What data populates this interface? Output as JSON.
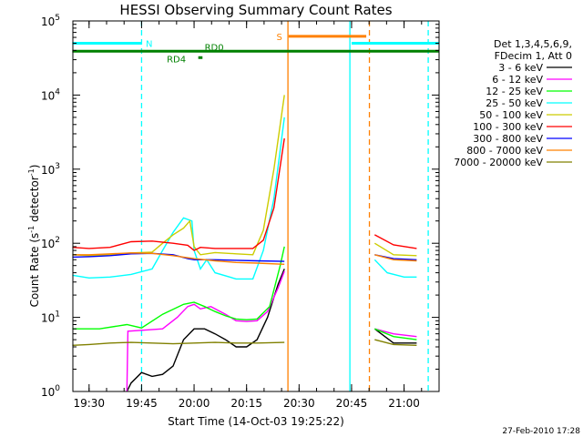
{
  "chart_data": {
    "type": "line",
    "title": "HESSI Observing Summary Count Rates",
    "xlabel": "Start Time (14-Oct-03 19:25:22)",
    "ylabel_main": "Count Rate (s",
    "ylabel_sup1": "-1",
    "ylabel_mid": " detector",
    "ylabel_sup2": "-1",
    "ylabel_end": ")",
    "xlim": [
      19.4228,
      21.1667
    ],
    "ylim": [
      1,
      100000
    ],
    "y_scale": "log",
    "x_ticks": [
      {
        "v": 19.5,
        "label": "19:30"
      },
      {
        "v": 19.75,
        "label": "19:45"
      },
      {
        "v": 20.0,
        "label": "20:00"
      },
      {
        "v": 20.25,
        "label": "20:15"
      },
      {
        "v": 20.5,
        "label": "20:30"
      },
      {
        "v": 20.75,
        "label": "20:45"
      },
      {
        "v": 21.0,
        "label": "21:00"
      }
    ],
    "y_ticks": [
      {
        "v": 1,
        "base": "10",
        "exp": "0"
      },
      {
        "v": 10,
        "base": "10",
        "exp": "1"
      },
      {
        "v": 100,
        "base": "10",
        "exp": "2"
      },
      {
        "v": 1000,
        "base": "10",
        "exp": "3"
      },
      {
        "v": 10000,
        "base": "10",
        "exp": "4"
      },
      {
        "v": 100000,
        "base": "10",
        "exp": "5"
      }
    ],
    "legend_header": [
      "Det 1,3,4,5,6,9,",
      "FDecim 1, Att 0"
    ],
    "legend_placement": "right",
    "series": [
      {
        "name": "3 - 6 keV",
        "color": "#000000",
        "segments": [
          [
            [
              19.68,
              1
            ],
            [
              19.7,
              1.3
            ],
            [
              19.75,
              1.8
            ],
            [
              19.8,
              1.6
            ],
            [
              19.85,
              1.7
            ],
            [
              19.9,
              2.2
            ],
            [
              19.95,
              5
            ],
            [
              20.0,
              7
            ],
            [
              20.05,
              7
            ],
            [
              20.1,
              6
            ],
            [
              20.15,
              5
            ],
            [
              20.2,
              4
            ],
            [
              20.25,
              4
            ],
            [
              20.3,
              5
            ],
            [
              20.35,
              10
            ],
            [
              20.4,
              28
            ],
            [
              20.43,
              45
            ]
          ],
          [
            [
              20.86,
              7
            ],
            [
              20.95,
              4.5
            ],
            [
              21.06,
              4.5
            ]
          ]
        ]
      },
      {
        "name": "6 - 12 keV",
        "color": "#ff00ff",
        "segments": [
          [
            [
              19.68,
              1
            ],
            [
              19.685,
              6.5
            ],
            [
              19.75,
              6.7
            ],
            [
              19.85,
              7
            ],
            [
              19.92,
              10
            ],
            [
              19.97,
              14
            ],
            [
              20.0,
              15
            ],
            [
              20.03,
              13
            ],
            [
              20.08,
              14
            ],
            [
              20.15,
              11
            ],
            [
              20.2,
              9
            ],
            [
              20.25,
              8.8
            ],
            [
              20.3,
              9
            ],
            [
              20.35,
              12
            ],
            [
              20.4,
              25
            ],
            [
              20.43,
              42
            ]
          ],
          [
            [
              20.86,
              7
            ],
            [
              20.95,
              6
            ],
            [
              21.06,
              5.5
            ]
          ]
        ]
      },
      {
        "name": "12 - 25 keV",
        "color": "#00ff00",
        "segments": [
          [
            [
              19.42,
              7
            ],
            [
              19.55,
              7
            ],
            [
              19.68,
              8
            ],
            [
              19.75,
              7.2
            ],
            [
              19.85,
              11
            ],
            [
              19.95,
              15
            ],
            [
              20.0,
              16
            ],
            [
              20.05,
              14
            ],
            [
              20.1,
              12
            ],
            [
              20.15,
              10.5
            ],
            [
              20.2,
              9.5
            ],
            [
              20.25,
              9.3
            ],
            [
              20.3,
              9.5
            ],
            [
              20.36,
              14
            ],
            [
              20.41,
              50
            ],
            [
              20.43,
              90
            ]
          ],
          [
            [
              20.86,
              7
            ],
            [
              20.95,
              5.5
            ],
            [
              21.06,
              5
            ]
          ]
        ]
      },
      {
        "name": "25 - 50 keV",
        "color": "#00ffff",
        "segments": [
          [
            [
              19.42,
              37
            ],
            [
              19.5,
              34
            ],
            [
              19.6,
              35
            ],
            [
              19.7,
              38
            ],
            [
              19.8,
              45
            ],
            [
              19.85,
              80
            ],
            [
              19.9,
              140
            ],
            [
              19.95,
              220
            ],
            [
              19.99,
              200
            ],
            [
              20.0,
              80
            ],
            [
              20.03,
              45
            ],
            [
              20.06,
              60
            ],
            [
              20.1,
              40
            ],
            [
              20.2,
              33
            ],
            [
              20.28,
              33
            ],
            [
              20.33,
              80
            ],
            [
              20.38,
              400
            ],
            [
              20.43,
              5000
            ]
          ],
          [
            [
              20.86,
              60
            ],
            [
              20.92,
              40
            ],
            [
              21.0,
              35
            ],
            [
              21.06,
              35
            ]
          ]
        ]
      },
      {
        "name": "50 - 100 keV",
        "color": "#cccc00",
        "segments": [
          [
            [
              19.42,
              70
            ],
            [
              19.5,
              68
            ],
            [
              19.6,
              70
            ],
            [
              19.7,
              74
            ],
            [
              19.8,
              76
            ],
            [
              19.85,
              100
            ],
            [
              19.9,
              130
            ],
            [
              19.95,
              160
            ],
            [
              19.98,
              200
            ],
            [
              20.0,
              90
            ],
            [
              20.03,
              70
            ],
            [
              20.1,
              75
            ],
            [
              20.2,
              72
            ],
            [
              20.28,
              70
            ],
            [
              20.33,
              150
            ],
            [
              20.38,
              1000
            ],
            [
              20.43,
              10000
            ]
          ],
          [
            [
              20.86,
              100
            ],
            [
              20.95,
              70
            ],
            [
              21.06,
              68
            ]
          ]
        ]
      },
      {
        "name": "100 - 300 keV",
        "color": "#ff0000",
        "segments": [
          [
            [
              19.42,
              88
            ],
            [
              19.5,
              85
            ],
            [
              19.6,
              88
            ],
            [
              19.7,
              105
            ],
            [
              19.8,
              107
            ],
            [
              19.9,
              100
            ],
            [
              19.97,
              94
            ],
            [
              20.0,
              80
            ],
            [
              20.03,
              88
            ],
            [
              20.1,
              85
            ],
            [
              20.2,
              85
            ],
            [
              20.28,
              85
            ],
            [
              20.33,
              110
            ],
            [
              20.38,
              300
            ],
            [
              20.43,
              2600
            ]
          ],
          [
            [
              20.86,
              130
            ],
            [
              20.95,
              95
            ],
            [
              21.06,
              85
            ]
          ]
        ]
      },
      {
        "name": "300 - 800 keV",
        "color": "#0000ff",
        "segments": [
          [
            [
              19.42,
              65
            ],
            [
              19.5,
              66
            ],
            [
              19.6,
              68
            ],
            [
              19.7,
              72
            ],
            [
              19.8,
              73
            ],
            [
              19.9,
              70
            ],
            [
              19.97,
              62
            ],
            [
              20.0,
              60
            ],
            [
              20.1,
              60
            ],
            [
              20.2,
              59
            ],
            [
              20.3,
              58
            ],
            [
              20.43,
              57
            ]
          ],
          [
            [
              20.86,
              70
            ],
            [
              20.95,
              62
            ],
            [
              21.06,
              60
            ]
          ]
        ]
      },
      {
        "name": "800 - 7000 keV",
        "color": "#ff8000",
        "segments": [
          [
            [
              19.42,
              70
            ],
            [
              19.5,
              70
            ],
            [
              19.6,
              72
            ],
            [
              19.7,
              74
            ],
            [
              19.8,
              73
            ],
            [
              19.9,
              68
            ],
            [
              20.0,
              62
            ],
            [
              20.1,
              58
            ],
            [
              20.2,
              55
            ],
            [
              20.3,
              54
            ],
            [
              20.43,
              52
            ]
          ],
          [
            [
              20.86,
              70
            ],
            [
              20.95,
              60
            ],
            [
              21.06,
              58
            ]
          ]
        ]
      },
      {
        "name": "7000 - 20000 keV",
        "color": "#808000",
        "segments": [
          [
            [
              19.42,
              4.2
            ],
            [
              19.5,
              4.3
            ],
            [
              19.6,
              4.5
            ],
            [
              19.7,
              4.6
            ],
            [
              19.8,
              4.5
            ],
            [
              19.9,
              4.4
            ],
            [
              20.0,
              4.5
            ],
            [
              20.1,
              4.6
            ],
            [
              20.2,
              4.5
            ],
            [
              20.3,
              4.5
            ],
            [
              20.43,
              4.6
            ]
          ],
          [
            [
              20.86,
              5
            ],
            [
              20.95,
              4.3
            ],
            [
              21.06,
              4.2
            ]
          ]
        ]
      }
    ],
    "flags": [
      {
        "label": "N",
        "color": "#00ffff",
        "segments": [
          [
            19.42,
            19.75
          ],
          [
            20.75,
            21.1667
          ]
        ],
        "y": 50000,
        "label_x": 19.77
      },
      {
        "label": "S",
        "color": "#ff8000",
        "segments": [
          [
            20.45,
            20.82
          ]
        ],
        "y": 62000,
        "label_x": 20.42
      },
      {
        "label": "RD0",
        "color": "#008000",
        "segments": [
          [
            19.42,
            21.1667
          ]
        ],
        "y": 39000,
        "label_x": 20.05
      },
      {
        "label": "RD4",
        "color": "#008000",
        "segments": [
          [
            20.02,
            20.04
          ]
        ],
        "y": 32000,
        "label_x": 19.87
      }
    ],
    "vlines": [
      {
        "x": 19.75,
        "color": "#00ffff",
        "dash": true
      },
      {
        "x": 20.447,
        "color": "#ff8000",
        "dash": false
      },
      {
        "x": 20.742,
        "color": "#00ffff",
        "dash": false
      },
      {
        "x": 20.835,
        "color": "#ff8000",
        "dash": true
      },
      {
        "x": 21.115,
        "color": "#00ffff",
        "dash": true
      }
    ]
  },
  "footer_date": "27-Feb-2010 17:28"
}
